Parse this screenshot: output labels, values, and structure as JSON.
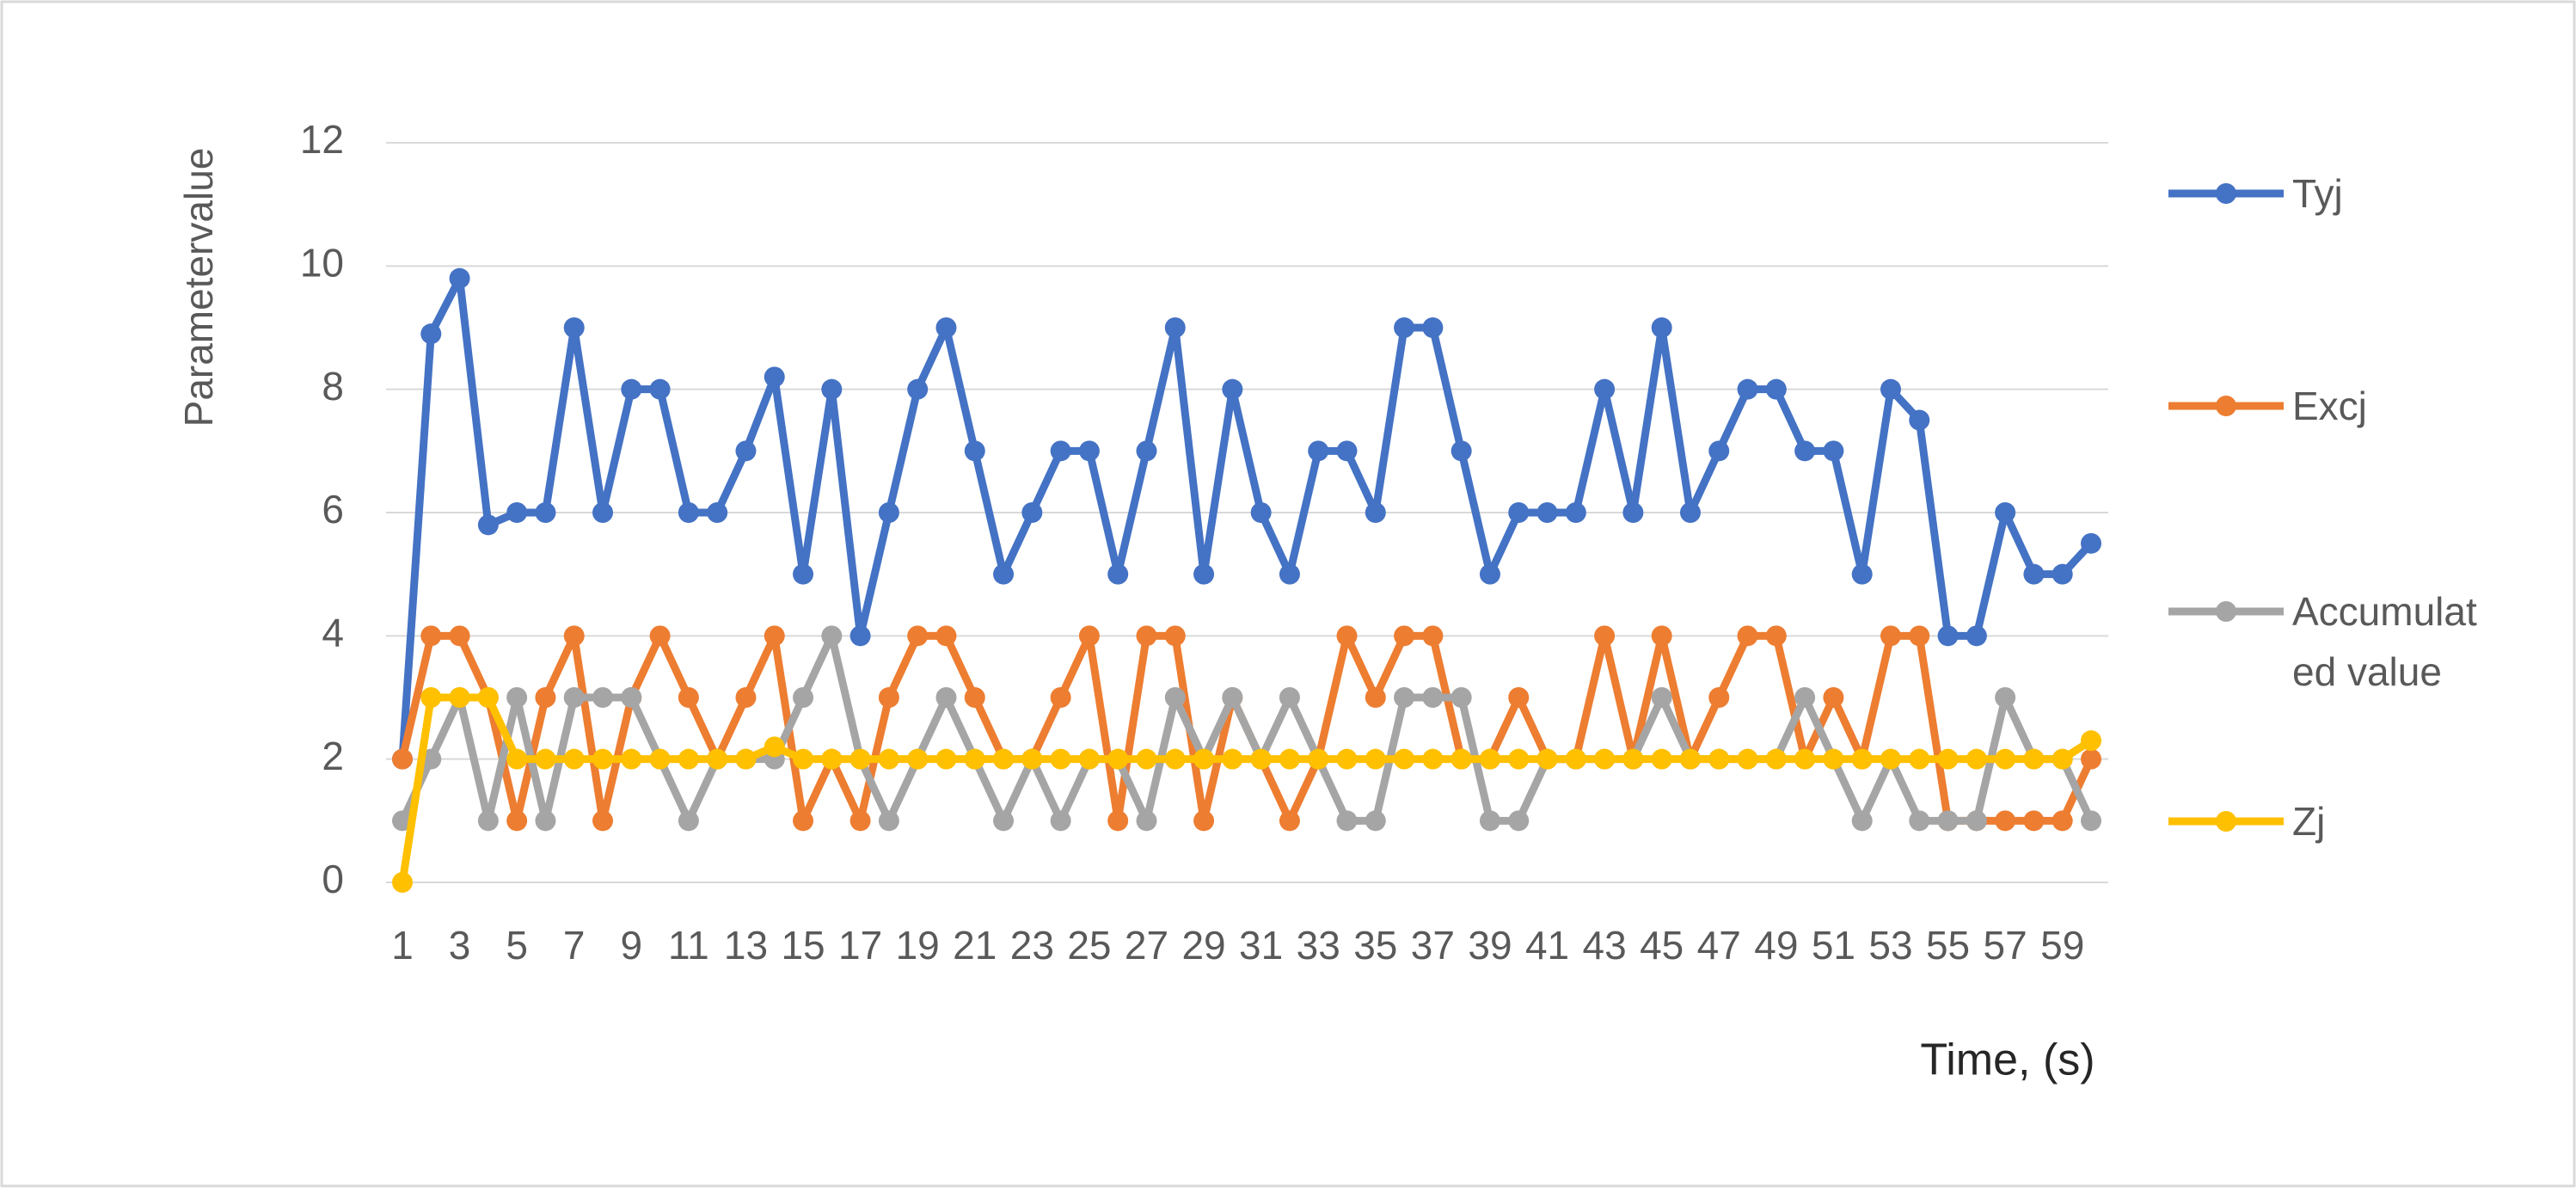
{
  "chart_data": {
    "type": "line",
    "x_label": "Time, (s)",
    "y_label": "Parametervalue",
    "categories": [
      "1",
      null,
      "3",
      null,
      "5",
      null,
      "7",
      null,
      "9",
      null,
      "11",
      null,
      "13",
      null,
      "15",
      null,
      "17",
      null,
      "19",
      null,
      "21",
      null,
      "23",
      null,
      "25",
      null,
      "27",
      null,
      "29",
      null,
      "31",
      null,
      "33",
      null,
      "35",
      null,
      "37",
      null,
      "39",
      null,
      "41",
      null,
      "43",
      null,
      "45",
      null,
      "47",
      null,
      "49",
      null,
      "51",
      null,
      "53",
      null,
      "55",
      null,
      "57",
      null,
      "59",
      null
    ],
    "series": [
      {
        "name": "Tyj",
        "color": "#4472c4",
        "values": [
          2,
          8.9,
          9.8,
          5.8,
          6,
          6,
          9,
          6,
          8,
          8,
          6,
          6,
          7,
          8.2,
          5,
          8,
          4,
          6,
          8,
          9,
          7,
          5,
          6,
          7,
          7,
          5,
          7,
          9,
          5,
          8,
          6,
          5,
          7,
          7,
          6,
          9,
          9,
          7,
          5,
          6,
          6,
          6,
          8,
          6,
          9,
          6,
          7,
          8,
          8,
          7,
          7,
          5,
          8,
          7.5,
          4,
          4,
          6,
          5,
          5,
          5.5
        ]
      },
      {
        "name": "Excj",
        "color": "#ed7d31",
        "values": [
          2,
          4,
          4,
          3,
          1,
          3,
          4,
          1,
          3,
          4,
          3,
          2,
          3,
          4,
          1,
          2,
          1,
          3,
          4,
          4,
          3,
          2,
          2,
          3,
          4,
          1,
          4,
          4,
          1,
          3,
          2,
          1,
          2,
          4,
          3,
          4,
          4,
          2,
          2,
          3,
          2,
          2,
          4,
          2,
          4,
          2,
          3,
          4,
          4,
          2,
          3,
          2,
          4,
          4,
          1,
          1,
          1,
          1,
          1,
          2
        ]
      },
      {
        "name": "Accumulated value",
        "color": "#a5a5a5",
        "values": [
          1,
          2,
          3,
          1,
          3,
          1,
          3,
          3,
          3,
          2,
          1,
          2,
          2,
          2,
          3,
          4,
          2,
          1,
          2,
          3,
          2,
          1,
          2,
          1,
          2,
          2,
          1,
          3,
          2,
          3,
          2,
          3,
          2,
          1,
          1,
          3,
          3,
          3,
          1,
          1,
          2,
          2,
          2,
          2,
          3,
          2,
          2,
          2,
          2,
          3,
          2,
          1,
          2,
          1,
          1,
          1,
          3,
          2,
          2,
          1
        ]
      },
      {
        "name": "Zj",
        "color": "#ffc000",
        "values": [
          0,
          3,
          3,
          3,
          2,
          2,
          2,
          2,
          2,
          2,
          2,
          2,
          2,
          2.2,
          2,
          2,
          2,
          2,
          2,
          2,
          2,
          2,
          2,
          2,
          2,
          2,
          2,
          2,
          2,
          2,
          2,
          2,
          2,
          2,
          2,
          2,
          2,
          2,
          2,
          2,
          2,
          2,
          2,
          2,
          2,
          2,
          2,
          2,
          2,
          2,
          2,
          2,
          2,
          2,
          2,
          2,
          2,
          2,
          2,
          2.3
        ]
      }
    ],
    "ylim": [
      0,
      12
    ],
    "yticks": [
      0,
      2,
      4,
      6,
      8,
      10,
      12
    ],
    "grid": true,
    "legend": "right"
  }
}
